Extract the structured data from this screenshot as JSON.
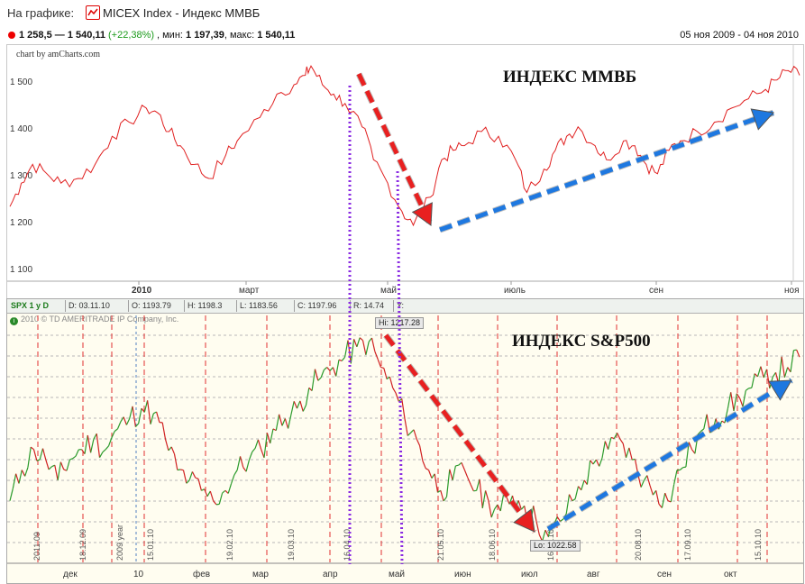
{
  "header": {
    "label": "На графике:",
    "title": "MICEX Index - Индекс ММВБ",
    "icon": "line-chart-icon"
  },
  "stats": {
    "range": "1 258,5 — 1 540,11",
    "change": "(+22,38%)",
    "min_label": ", мин:",
    "min_value": "1 197,39",
    "max_label": ", макс:",
    "max_value": "1 540,11",
    "period": "05 ноя 2009 - 04 ноя 2010"
  },
  "annotations": {
    "micex_title": "ИНДЕКС ММВБ",
    "spx_title": "ИНДЕКС S&P500"
  },
  "colors": {
    "micex_line": "#e02020",
    "red_arrow": "#e82020",
    "blue_arrow": "#1e78e0",
    "purple_line": "#8a2be2",
    "spx_up": "#2a9a2a",
    "spx_down": "#d02020"
  },
  "chart_data": [
    {
      "type": "line",
      "credit": "chart by amCharts.com",
      "y_ticks": [
        "1 500",
        "1 400",
        "1 300",
        "1 200",
        "1 100"
      ],
      "y_tick_values": [
        1500,
        1400,
        1300,
        1200,
        1100
      ],
      "x_ticks": [
        "2010",
        "март",
        "май",
        "июль",
        "сен",
        "ноя"
      ],
      "ylim": [
        1100,
        1540
      ],
      "series": [
        {
          "points": [
            [
              0,
              1240
            ],
            [
              4,
              1290
            ],
            [
              8,
              1330
            ],
            [
              13,
              1310
            ],
            [
              18,
              1290
            ],
            [
              24,
              1300
            ],
            [
              30,
              1330
            ],
            [
              36,
              1390
            ],
            [
              42,
              1420
            ],
            [
              48,
              1450
            ],
            [
              52,
              1440
            ],
            [
              56,
              1400
            ],
            [
              60,
              1370
            ],
            [
              65,
              1330
            ],
            [
              70,
              1300
            ],
            [
              76,
              1350
            ],
            [
              80,
              1380
            ],
            [
              88,
              1430
            ],
            [
              94,
              1480
            ],
            [
              100,
              1500
            ],
            [
              104,
              1520
            ],
            [
              106,
              1540
            ],
            [
              110,
              1500
            ],
            [
              114,
              1480
            ],
            [
              118,
              1460
            ],
            [
              124,
              1410
            ],
            [
              128,
              1340
            ],
            [
              133,
              1290
            ],
            [
              138,
              1230
            ],
            [
              142,
              1200
            ],
            [
              148,
              1260
            ],
            [
              152,
              1340
            ],
            [
              156,
              1360
            ],
            [
              160,
              1370
            ],
            [
              166,
              1400
            ],
            [
              172,
              1390
            ],
            [
              178,
              1340
            ],
            [
              182,
              1270
            ],
            [
              188,
              1320
            ],
            [
              192,
              1360
            ],
            [
              196,
              1390
            ],
            [
              200,
              1410
            ],
            [
              206,
              1370
            ],
            [
              210,
              1340
            ],
            [
              216,
              1380
            ],
            [
              220,
              1370
            ],
            [
              224,
              1330
            ],
            [
              228,
              1310
            ],
            [
              232,
              1360
            ],
            [
              236,
              1380
            ],
            [
              242,
              1400
            ],
            [
              248,
              1420
            ],
            [
              254,
              1450
            ],
            [
              260,
              1470
            ],
            [
              266,
              1490
            ],
            [
              270,
              1510
            ],
            [
              274,
              1530
            ],
            [
              278,
              1520
            ]
          ]
        }
      ]
    },
    {
      "type": "line",
      "info": {
        "symbol": "SPX 1 y D",
        "date": "D: 03.11.10",
        "open": "O: 1193.79",
        "high": "H: 1198.3",
        "low": "L: 1183.56",
        "close": "C: 1197.96",
        "r": "R: 14.74",
        "y": "Y:"
      },
      "copyright": "2010 © TD AMERITRADE IP Company, Inc.",
      "high_flag": "Hi: 1217.28",
      "low_flag": "Lo: 1022.58",
      "x_ticks": [
        "дек",
        "10",
        "фев",
        "мар",
        "апр",
        "май",
        "июн",
        "июл",
        "авг",
        "сен",
        "окт"
      ],
      "vertical_labels": [
        "2011.09",
        "18.12.09",
        "2009 year",
        "15.01.10",
        "19.02.10",
        "19.03.10",
        "16.04.10",
        "21.05.10",
        "18.06.10",
        "16.07.10",
        "20.08.10",
        "17.09.10",
        "15.10.10"
      ],
      "ylim": [
        1000,
        1230
      ],
      "series": [
        {
          "points": [
            [
              0,
              1060
            ],
            [
              4,
              1090
            ],
            [
              8,
              1110
            ],
            [
              12,
              1100
            ],
            [
              16,
              1080
            ],
            [
              20,
              1100
            ],
            [
              24,
              1110
            ],
            [
              28,
              1120
            ],
            [
              32,
              1110
            ],
            [
              36,
              1130
            ],
            [
              40,
              1140
            ],
            [
              44,
              1150
            ],
            [
              48,
              1145
            ],
            [
              52,
              1120
            ],
            [
              56,
              1090
            ],
            [
              60,
              1080
            ],
            [
              64,
              1070
            ],
            [
              68,
              1060
            ],
            [
              72,
              1070
            ],
            [
              76,
              1090
            ],
            [
              80,
              1100
            ],
            [
              84,
              1110
            ],
            [
              88,
              1130
            ],
            [
              92,
              1140
            ],
            [
              96,
              1150
            ],
            [
              100,
              1170
            ],
            [
              104,
              1180
            ],
            [
              108,
              1190
            ],
            [
              112,
              1200
            ],
            [
              116,
              1210
            ],
            [
              120,
              1215
            ],
            [
              124,
              1190
            ],
            [
              128,
              1170
            ],
            [
              132,
              1140
            ],
            [
              136,
              1120
            ],
            [
              140,
              1090
            ],
            [
              144,
              1070
            ],
            [
              148,
              1080
            ],
            [
              152,
              1090
            ],
            [
              156,
              1070
            ],
            [
              160,
              1060
            ],
            [
              164,
              1050
            ],
            [
              168,
              1065
            ],
            [
              172,
              1055
            ],
            [
              176,
              1040
            ],
            [
              180,
              1025
            ],
            [
              184,
              1040
            ],
            [
              188,
              1060
            ],
            [
              192,
              1080
            ],
            [
              196,
              1100
            ],
            [
              200,
              1110
            ],
            [
              204,
              1120
            ],
            [
              208,
              1100
            ],
            [
              212,
              1080
            ],
            [
              216,
              1070
            ],
            [
              220,
              1060
            ],
            [
              224,
              1090
            ],
            [
              228,
              1110
            ],
            [
              232,
              1130
            ],
            [
              236,
              1140
            ],
            [
              240,
              1150
            ],
            [
              244,
              1160
            ],
            [
              248,
              1170
            ],
            [
              252,
              1180
            ],
            [
              256,
              1185
            ],
            [
              260,
              1190
            ],
            [
              264,
              1200
            ]
          ]
        }
      ]
    }
  ]
}
